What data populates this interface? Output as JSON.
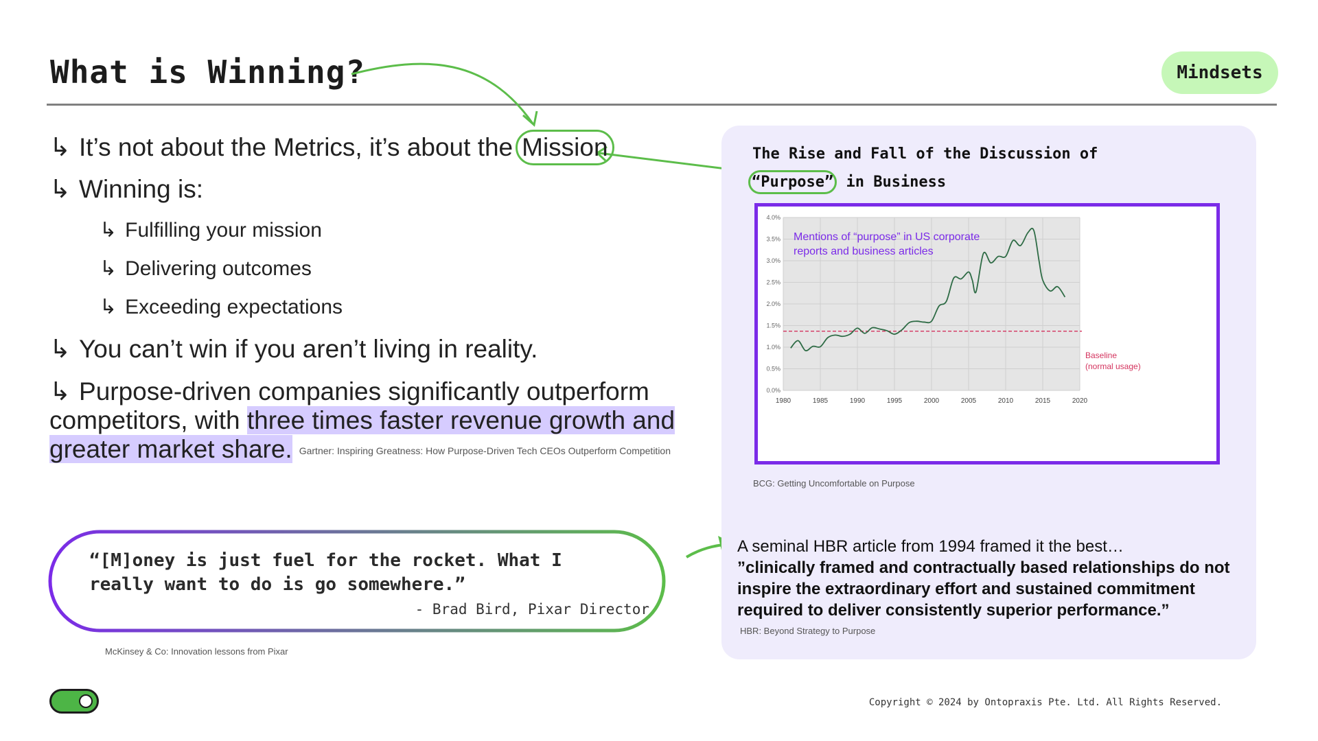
{
  "header": {
    "title": "What is Winning?",
    "badge": "Mindsets"
  },
  "bullets": {
    "b1_before": "It’s not about the Metrics, it’s about the",
    "b1_circled": "Mission",
    "b2": "Winning is:",
    "sub": [
      "Fulfilling your mission",
      "Delivering outcomes",
      "Exceeding expectations"
    ],
    "b3": "You can’t win if you aren’t living in reality.",
    "b4_plain": "Purpose-driven companies significantly outperform competitors, with",
    "b4_highlight": "three times faster revenue growth and greater market share.",
    "b4_cite": "Gartner: Inspiring Greatness: How Purpose-Driven Tech CEOs Outperform Competition",
    "arrow_glyph": "↳"
  },
  "quote": {
    "line1": "“[M]oney is just fuel for the rocket. What I",
    "line2": "really want to do is go somewhere.”",
    "author": "- Brad Bird, Pixar Director",
    "cite": "McKinsey & Co: Innovation lessons from Pixar"
  },
  "panel": {
    "chart_title_line1": "The Rise and Fall of the Discussion of",
    "chart_title_circled": "“Purpose”",
    "chart_title_rest": "in Business",
    "chart_cite": "BCG: Getting Uncomfortable on Purpose",
    "hbr_lead": "A seminal HBR article from 1994 framed it the best…",
    "hbr_quote": "”clinically framed and contractually based relationships do not inspire the extraordinary effort and sustained commitment required to deliver consistently superior performance.”",
    "hbr_cite": "HBR: Beyond Strategy to Purpose"
  },
  "chart_data": {
    "type": "line",
    "annotation_line1": "Mentions of “purpose” in US corporate",
    "annotation_line2": "reports and business articles",
    "baseline_label_line1": "Baseline",
    "baseline_label_line2": "(normal usage)",
    "baseline_value": 1.37,
    "xlim": [
      1980,
      2020
    ],
    "ylim": [
      0,
      4.0
    ],
    "x_ticks": [
      "1980",
      "1985",
      "1990",
      "1995",
      "2000",
      "2005",
      "2010",
      "2015",
      "2020"
    ],
    "y_ticks": [
      "0.0%",
      "0.5%",
      "1.0%",
      "1.5%",
      "2.0%",
      "2.5%",
      "3.0%",
      "3.5%",
      "4.0%"
    ],
    "grid": true,
    "colors": {
      "line": "#2e6b45",
      "baseline": "#d4335e",
      "annotation": "#7b2be8",
      "frame": "#7b2be8"
    },
    "series": [
      {
        "x": [
          1981,
          1982,
          1983,
          1984,
          1985,
          1986,
          1987,
          1988,
          1989,
          1990,
          1991,
          1992,
          1993,
          1994,
          1995,
          1996,
          1997,
          1998,
          1999,
          2000,
          2001,
          2002,
          2003,
          2004,
          2005,
          2005.5,
          2006,
          2007,
          2008,
          2009,
          2010,
          2011,
          2012,
          2013,
          2013.8,
          2014.5,
          2015,
          2016,
          2017,
          2018
        ],
        "y": [
          0.98,
          1.15,
          0.92,
          1.02,
          1.01,
          1.22,
          1.28,
          1.25,
          1.3,
          1.44,
          1.32,
          1.45,
          1.42,
          1.38,
          1.3,
          1.4,
          1.57,
          1.6,
          1.58,
          1.6,
          1.95,
          2.06,
          2.6,
          2.58,
          2.74,
          2.55,
          2.28,
          3.17,
          2.95,
          3.1,
          3.1,
          3.47,
          3.35,
          3.65,
          3.7,
          3.0,
          2.55,
          2.3,
          2.4,
          2.16
        ]
      }
    ]
  },
  "footer": {
    "copyright": "Copyright © 2024 by Ontopraxis Pte. Ltd. All Rights Reserved."
  }
}
